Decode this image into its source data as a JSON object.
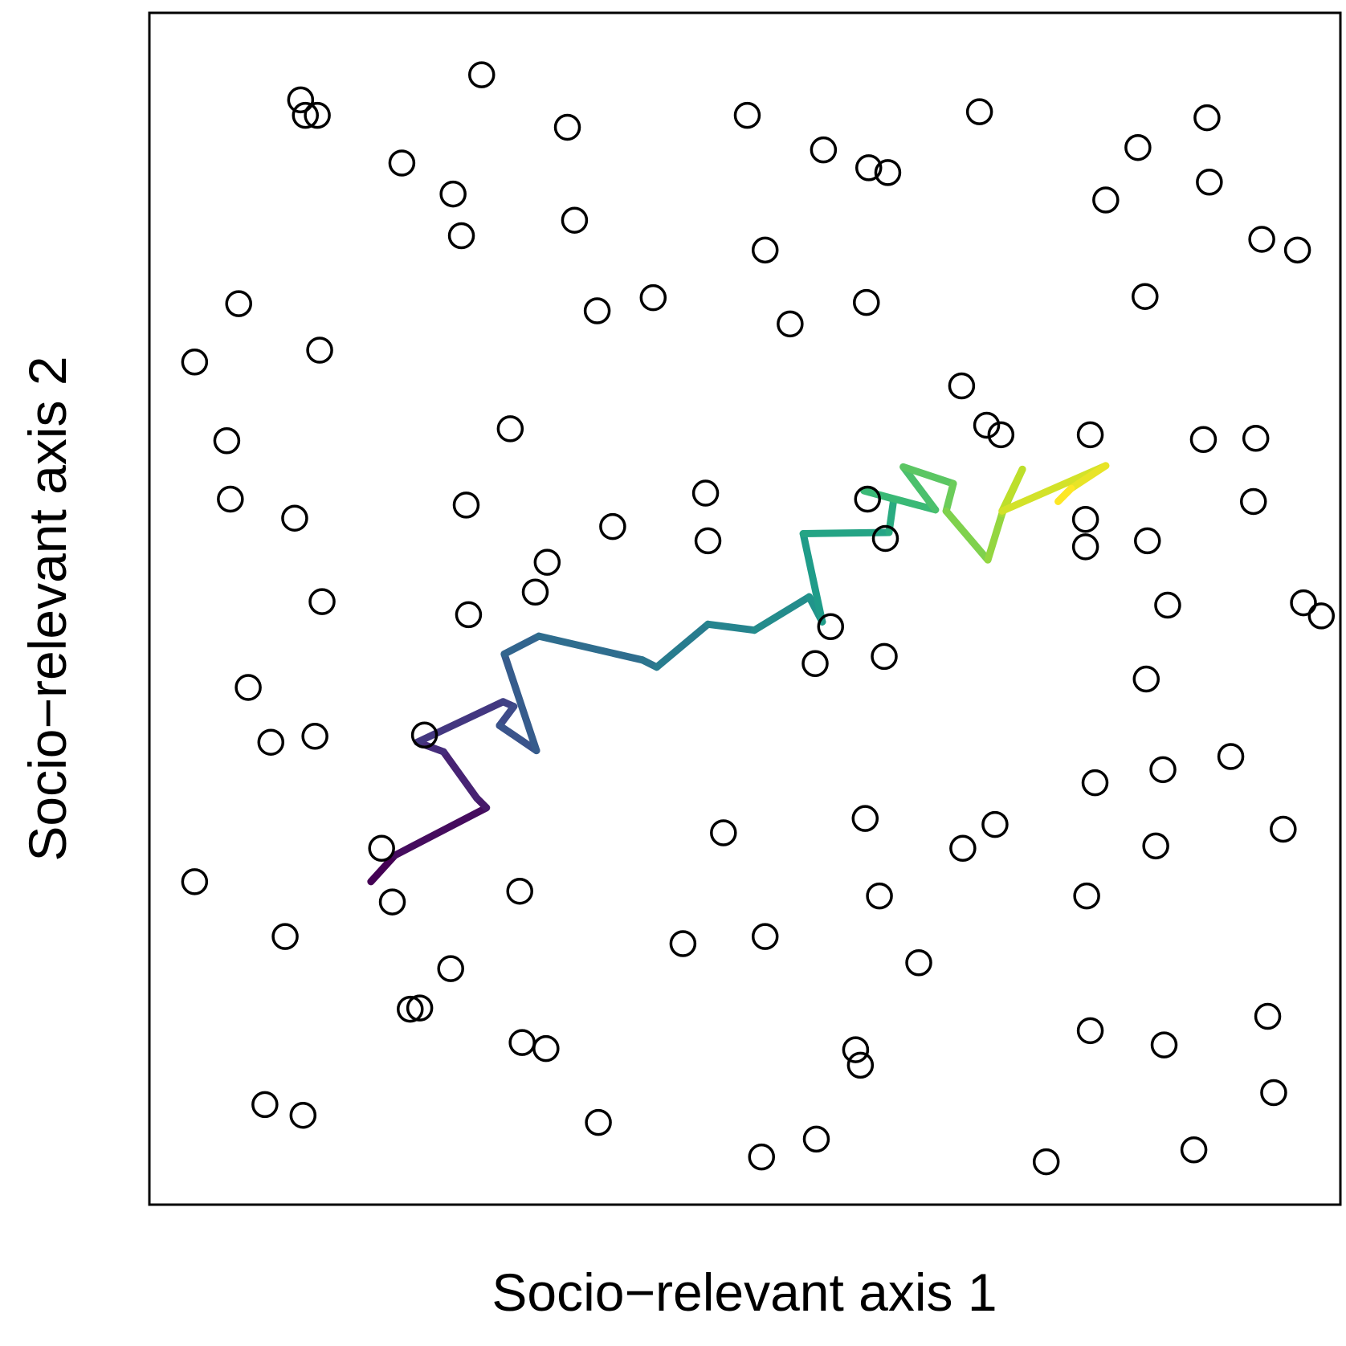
{
  "chart_data": {
    "type": "scatter",
    "title": "",
    "xlabel": "Socio−relevant axis 1",
    "ylabel": "Socio−relevant axis 2",
    "xlim": [
      0,
      1
    ],
    "ylim": [
      0,
      1
    ],
    "ticks": false,
    "grid": false,
    "legend": "none",
    "point_style": "open circle",
    "points": [
      {
        "x": 0.038,
        "y": 0.271
      },
      {
        "x": 0.097,
        "y": 0.084
      },
      {
        "x": 0.129,
        "y": 0.075
      },
      {
        "x": 0.114,
        "y": 0.225
      },
      {
        "x": 0.204,
        "y": 0.254
      },
      {
        "x": 0.219,
        "y": 0.164
      },
      {
        "x": 0.227,
        "y": 0.165
      },
      {
        "x": 0.253,
        "y": 0.198
      },
      {
        "x": 0.313,
        "y": 0.136
      },
      {
        "x": 0.333,
        "y": 0.131
      },
      {
        "x": 0.311,
        "y": 0.263
      },
      {
        "x": 0.377,
        "y": 0.069
      },
      {
        "x": 0.448,
        "y": 0.219
      },
      {
        "x": 0.482,
        "y": 0.312
      },
      {
        "x": 0.517,
        "y": 0.225
      },
      {
        "x": 0.514,
        "y": 0.04
      },
      {
        "x": 0.56,
        "y": 0.055
      },
      {
        "x": 0.593,
        "y": 0.13
      },
      {
        "x": 0.597,
        "y": 0.117
      },
      {
        "x": 0.601,
        "y": 0.324
      },
      {
        "x": 0.613,
        "y": 0.259
      },
      {
        "x": 0.646,
        "y": 0.203
      },
      {
        "x": 0.683,
        "y": 0.299
      },
      {
        "x": 0.71,
        "y": 0.319
      },
      {
        "x": 0.753,
        "y": 0.036
      },
      {
        "x": 0.787,
        "y": 0.259
      },
      {
        "x": 0.79,
        "y": 0.146
      },
      {
        "x": 0.852,
        "y": 0.134
      },
      {
        "x": 0.877,
        "y": 0.046
      },
      {
        "x": 0.939,
        "y": 0.158
      },
      {
        "x": 0.944,
        "y": 0.094
      },
      {
        "x": 0.952,
        "y": 0.315
      },
      {
        "x": 0.794,
        "y": 0.354
      },
      {
        "x": 0.851,
        "y": 0.365
      },
      {
        "x": 0.908,
        "y": 0.376
      },
      {
        "x": 0.845,
        "y": 0.301
      },
      {
        "x": 0.038,
        "y": 0.707
      },
      {
        "x": 0.065,
        "y": 0.641
      },
      {
        "x": 0.068,
        "y": 0.592
      },
      {
        "x": 0.083,
        "y": 0.434
      },
      {
        "x": 0.102,
        "y": 0.388
      },
      {
        "x": 0.122,
        "y": 0.576
      },
      {
        "x": 0.145,
        "y": 0.506
      },
      {
        "x": 0.139,
        "y": 0.393
      },
      {
        "x": 0.195,
        "y": 0.299
      },
      {
        "x": 0.231,
        "y": 0.394
      },
      {
        "x": 0.266,
        "y": 0.587
      },
      {
        "x": 0.268,
        "y": 0.495
      },
      {
        "x": 0.303,
        "y": 0.651
      },
      {
        "x": 0.324,
        "y": 0.514
      },
      {
        "x": 0.334,
        "y": 0.539
      },
      {
        "x": 0.389,
        "y": 0.569
      },
      {
        "x": 0.467,
        "y": 0.597
      },
      {
        "x": 0.469,
        "y": 0.557
      },
      {
        "x": 0.559,
        "y": 0.454
      },
      {
        "x": 0.572,
        "y": 0.485
      },
      {
        "x": 0.617,
        "y": 0.46
      },
      {
        "x": 0.603,
        "y": 0.592
      },
      {
        "x": 0.618,
        "y": 0.559
      },
      {
        "x": 0.786,
        "y": 0.552
      },
      {
        "x": 0.837,
        "y": 0.441
      },
      {
        "x": 0.838,
        "y": 0.557
      },
      {
        "x": 0.786,
        "y": 0.575
      },
      {
        "x": 0.79,
        "y": 0.646
      },
      {
        "x": 0.715,
        "y": 0.646
      },
      {
        "x": 0.682,
        "y": 0.687
      },
      {
        "x": 0.703,
        "y": 0.654
      },
      {
        "x": 0.855,
        "y": 0.503
      },
      {
        "x": 0.885,
        "y": 0.642
      },
      {
        "x": 0.929,
        "y": 0.643
      },
      {
        "x": 0.927,
        "y": 0.59
      },
      {
        "x": 0.969,
        "y": 0.505
      },
      {
        "x": 0.984,
        "y": 0.494
      },
      {
        "x": 0.131,
        "y": 0.914
      },
      {
        "x": 0.075,
        "y": 0.756
      },
      {
        "x": 0.143,
        "y": 0.717
      },
      {
        "x": 0.127,
        "y": 0.927
      },
      {
        "x": 0.141,
        "y": 0.914
      },
      {
        "x": 0.212,
        "y": 0.874
      },
      {
        "x": 0.262,
        "y": 0.813
      },
      {
        "x": 0.279,
        "y": 0.948
      },
      {
        "x": 0.255,
        "y": 0.848
      },
      {
        "x": 0.351,
        "y": 0.904
      },
      {
        "x": 0.357,
        "y": 0.826
      },
      {
        "x": 0.376,
        "y": 0.75
      },
      {
        "x": 0.423,
        "y": 0.761
      },
      {
        "x": 0.502,
        "y": 0.914
      },
      {
        "x": 0.517,
        "y": 0.801
      },
      {
        "x": 0.538,
        "y": 0.739
      },
      {
        "x": 0.566,
        "y": 0.885
      },
      {
        "x": 0.602,
        "y": 0.757
      },
      {
        "x": 0.604,
        "y": 0.87
      },
      {
        "x": 0.62,
        "y": 0.866
      },
      {
        "x": 0.697,
        "y": 0.917
      },
      {
        "x": 0.803,
        "y": 0.843
      },
      {
        "x": 0.83,
        "y": 0.887
      },
      {
        "x": 0.888,
        "y": 0.912
      },
      {
        "x": 0.89,
        "y": 0.858
      },
      {
        "x": 0.934,
        "y": 0.81
      },
      {
        "x": 0.836,
        "y": 0.762
      },
      {
        "x": 0.964,
        "y": 0.801
      }
    ],
    "trajectory": {
      "color_scale": "viridis",
      "points": [
        {
          "x": 0.186,
          "y": 0.271
        },
        {
          "x": 0.206,
          "y": 0.293
        },
        {
          "x": 0.283,
          "y": 0.333
        },
        {
          "x": 0.275,
          "y": 0.341
        },
        {
          "x": 0.247,
          "y": 0.38
        },
        {
          "x": 0.225,
          "y": 0.388
        },
        {
          "x": 0.297,
          "y": 0.422
        },
        {
          "x": 0.306,
          "y": 0.418
        },
        {
          "x": 0.294,
          "y": 0.402
        },
        {
          "x": 0.325,
          "y": 0.381
        },
        {
          "x": 0.298,
          "y": 0.462
        },
        {
          "x": 0.327,
          "y": 0.477
        },
        {
          "x": 0.414,
          "y": 0.457
        },
        {
          "x": 0.426,
          "y": 0.451
        },
        {
          "x": 0.469,
          "y": 0.487
        },
        {
          "x": 0.508,
          "y": 0.482
        },
        {
          "x": 0.554,
          "y": 0.51
        },
        {
          "x": 0.565,
          "y": 0.489
        },
        {
          "x": 0.549,
          "y": 0.563
        },
        {
          "x": 0.621,
          "y": 0.564
        },
        {
          "x": 0.625,
          "y": 0.592
        },
        {
          "x": 0.6,
          "y": 0.599
        },
        {
          "x": 0.66,
          "y": 0.583
        },
        {
          "x": 0.633,
          "y": 0.619
        },
        {
          "x": 0.675,
          "y": 0.605
        },
        {
          "x": 0.669,
          "y": 0.582
        },
        {
          "x": 0.704,
          "y": 0.541
        },
        {
          "x": 0.716,
          "y": 0.58
        },
        {
          "x": 0.733,
          "y": 0.617
        },
        {
          "x": 0.716,
          "y": 0.582
        },
        {
          "x": 0.803,
          "y": 0.62
        },
        {
          "x": 0.774,
          "y": 0.601
        },
        {
          "x": 0.763,
          "y": 0.59
        }
      ]
    }
  }
}
